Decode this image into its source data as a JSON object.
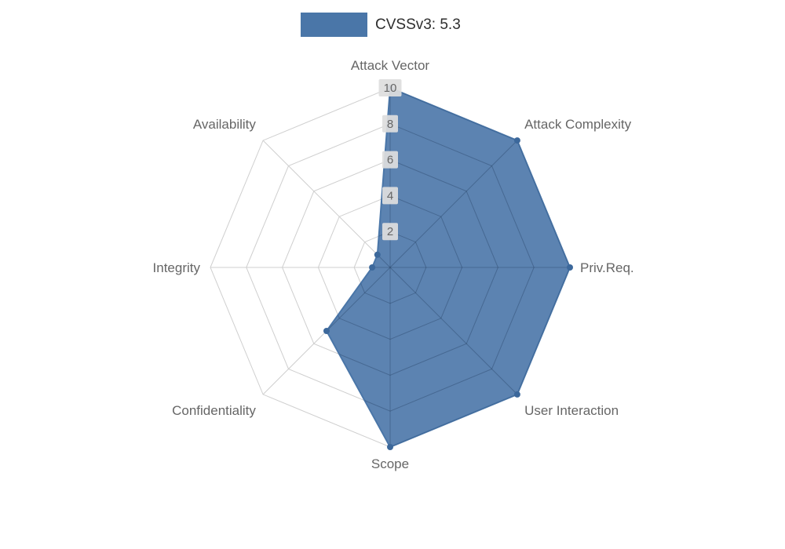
{
  "legend": {
    "label": "CVSSv3: 5.3"
  },
  "chart_data": {
    "type": "radar",
    "title": "CVSSv3: 5.3",
    "categories": [
      "Attack Vector",
      "Attack Complexity",
      "Priv.Req.",
      "User Interaction",
      "Scope",
      "Confidentiality",
      "Integrity",
      "Availability"
    ],
    "series": [
      {
        "name": "CVSSv3: 5.3",
        "values": [
          10,
          10,
          10,
          10,
          10,
          5,
          1,
          1
        ]
      }
    ],
    "max": 10,
    "min": 0,
    "ticks": [
      2,
      4,
      6,
      8,
      10
    ],
    "grid": true,
    "legend_position": "top",
    "colors": {
      "fill": "#4a76a8",
      "line": "#3c689b",
      "grid": "#cfcfcf",
      "inner_grid": "rgba(25,45,75,0.28)",
      "axis_label": "#666666",
      "tick_text": "#666666",
      "tick_backdrop": "#dedede",
      "background": "#ffffff"
    }
  }
}
